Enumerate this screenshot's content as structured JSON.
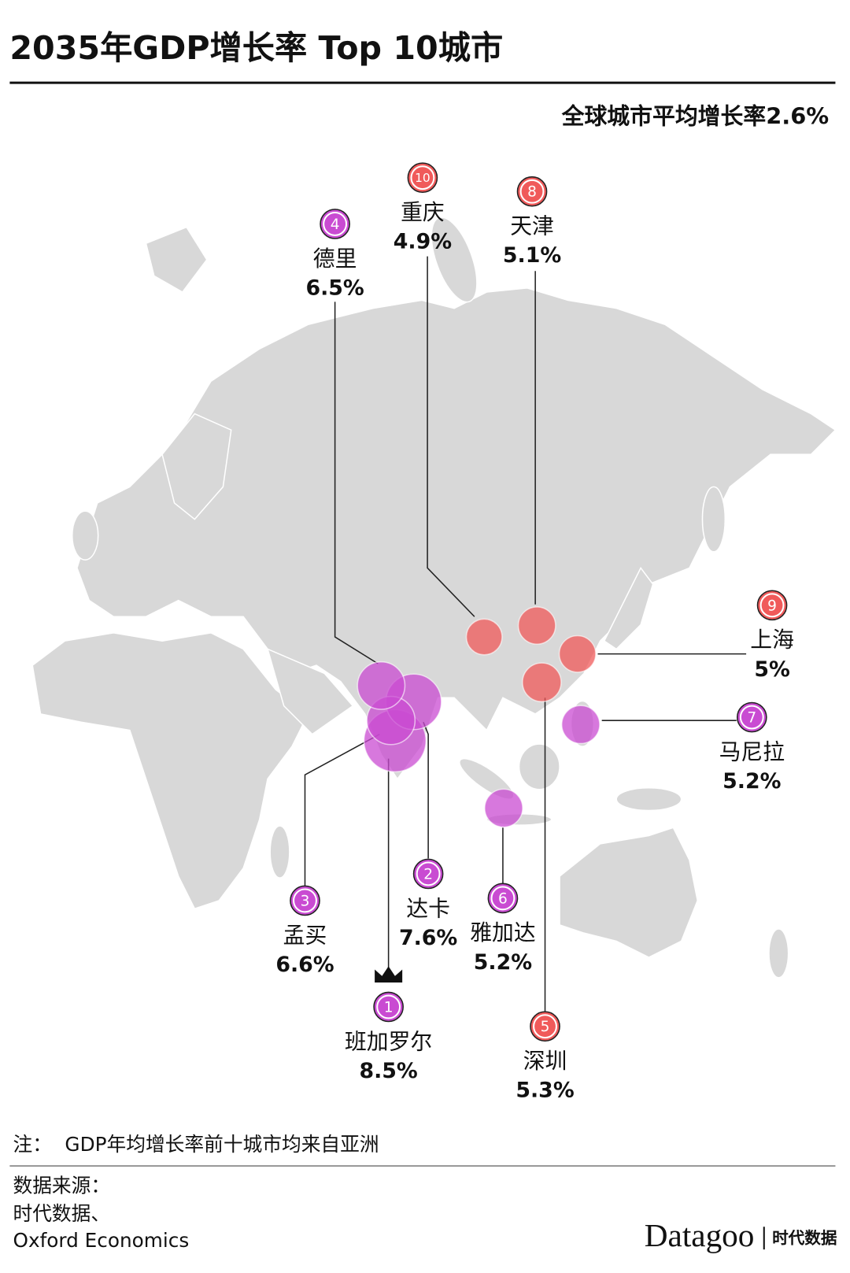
{
  "header": {
    "title": "2035年GDP增长率 Top 10城市",
    "subtitle": "全球城市平均增长率2.6%"
  },
  "cities": [
    {
      "rank": 1,
      "name": "班加罗尔",
      "growth": 8.5,
      "growth_label": "8.5%",
      "color": "#c94bd2"
    },
    {
      "rank": 2,
      "name": "达卡",
      "growth": 7.6,
      "growth_label": "7.6%",
      "color": "#c94bd2"
    },
    {
      "rank": 3,
      "name": "孟买",
      "growth": 6.6,
      "growth_label": "6.6%",
      "color": "#c94bd2"
    },
    {
      "rank": 4,
      "name": "德里",
      "growth": 6.5,
      "growth_label": "6.5%",
      "color": "#c94bd2"
    },
    {
      "rank": 5,
      "name": "深圳",
      "growth": 5.3,
      "growth_label": "5.3%",
      "color": "#f05a5a"
    },
    {
      "rank": 6,
      "name": "雅加达",
      "growth": 5.2,
      "growth_label": "5.2%",
      "color": "#c94bd2"
    },
    {
      "rank": 7,
      "name": "马尼拉",
      "growth": 5.2,
      "growth_label": "5.2%",
      "color": "#c94bd2"
    },
    {
      "rank": 8,
      "name": "天津",
      "growth": 5.1,
      "growth_label": "5.1%",
      "color": "#f05a5a"
    },
    {
      "rank": 9,
      "name": "上海",
      "growth": 5,
      "growth_label": "5%",
      "color": "#f05a5a"
    },
    {
      "rank": 10,
      "name": "重庆",
      "growth": 4.9,
      "growth_label": "4.9%",
      "color": "#f05a5a"
    }
  ],
  "note": {
    "label": "注：",
    "text": "GDP年均增长率前十城市均来自亚洲"
  },
  "source": {
    "label": "数据来源：",
    "lines": [
      "时代数据、",
      "Oxford Economics"
    ]
  },
  "logo": {
    "brand": "Datagoo",
    "sub": "时代数据"
  }
}
